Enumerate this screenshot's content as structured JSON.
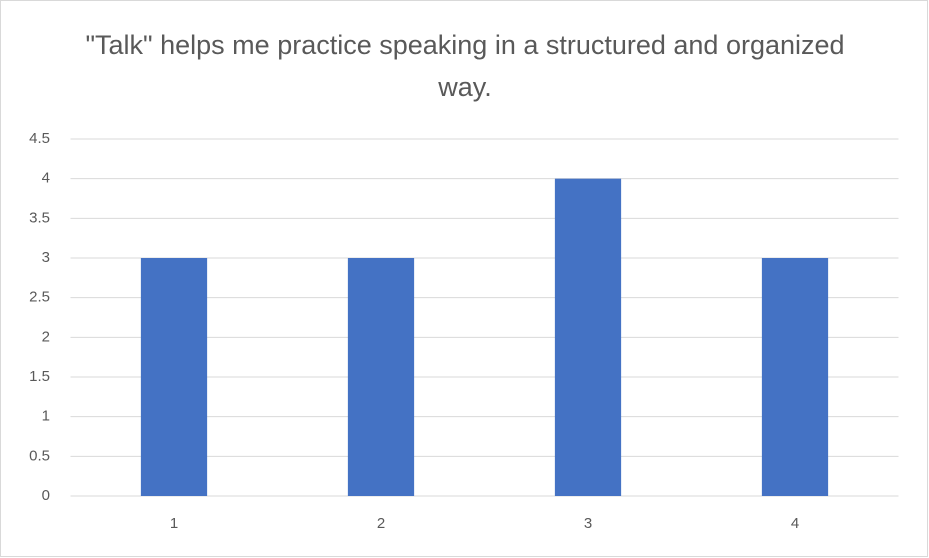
{
  "chart_data": {
    "type": "bar",
    "title": "\"Talk\" helps me practice speaking in a structured and organized way.",
    "categories": [
      "1",
      "2",
      "3",
      "4"
    ],
    "values": [
      3,
      3,
      4,
      3
    ],
    "color": "#4472c4",
    "ylim": [
      0,
      4.5
    ],
    "yticks": [
      0,
      0.5,
      1,
      1.5,
      2,
      2.5,
      3,
      3.5,
      4,
      4.5
    ],
    "grid": true
  }
}
